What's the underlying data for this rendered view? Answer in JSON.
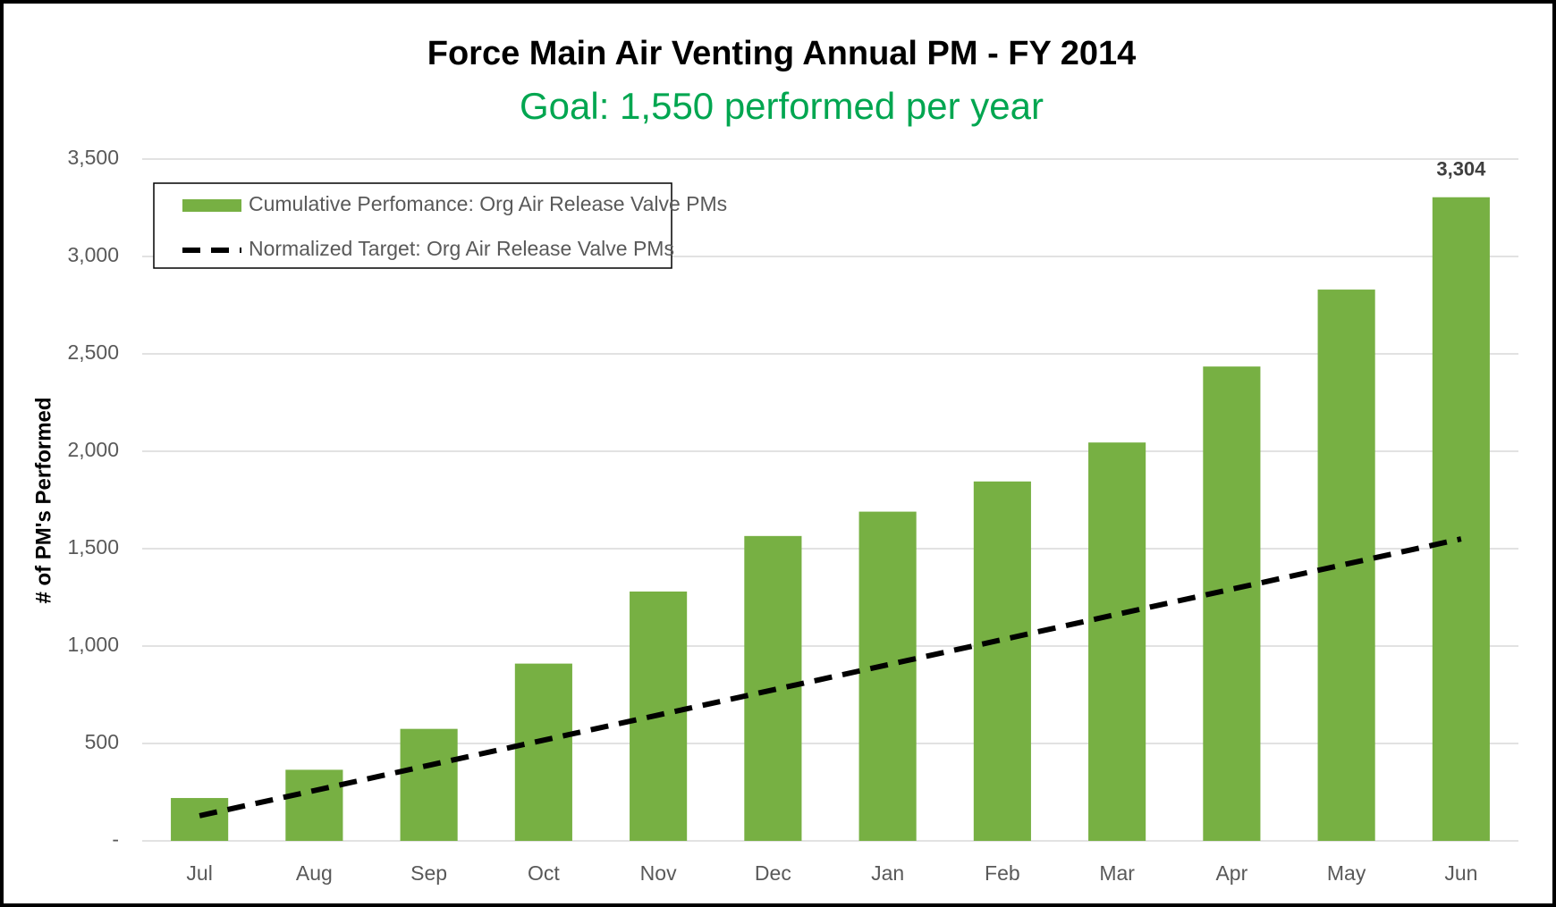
{
  "chart_data": {
    "type": "bar",
    "title": "Force Main Air Venting Annual PM - FY 2014",
    "subtitle": "Goal: 1,550 performed per year",
    "y_label": "# of PM's Performed",
    "categories": [
      "Jul",
      "Aug",
      "Sep",
      "Oct",
      "Nov",
      "Dec",
      "Jan",
      "Feb",
      "Mar",
      "Apr",
      "May",
      "Jun"
    ],
    "series": [
      {
        "name": "Cumulative Perfomance: Org Air Release Valve PMs",
        "type": "bar",
        "color": "#77b043",
        "values": [
          220,
          365,
          575,
          910,
          1280,
          1565,
          1690,
          1845,
          2045,
          2435,
          2830,
          3304
        ],
        "value_labels": [
          null,
          null,
          null,
          null,
          null,
          null,
          null,
          null,
          null,
          null,
          null,
          "3,304"
        ]
      },
      {
        "name": "Normalized Target: Org Air Release Valve PMs",
        "type": "line",
        "color": "#000000",
        "dashed": true,
        "values": [
          129,
          258,
          388,
          517,
          646,
          775,
          904,
          1033,
          1163,
          1292,
          1421,
          1550
        ]
      }
    ],
    "ylim": [
      0,
      3500
    ],
    "yticks": [
      {
        "value": 0,
        "label": "-"
      },
      500,
      {
        "value": 1000,
        "label": "1,000"
      },
      {
        "value": 1500,
        "label": "1,500"
      },
      {
        "value": 2000,
        "label": "2,000"
      },
      {
        "value": 2500,
        "label": "2,500"
      },
      {
        "value": 3000,
        "label": "3,000"
      },
      {
        "value": 3500,
        "label": "3,500"
      }
    ],
    "grid": true,
    "legend": "upper left"
  }
}
